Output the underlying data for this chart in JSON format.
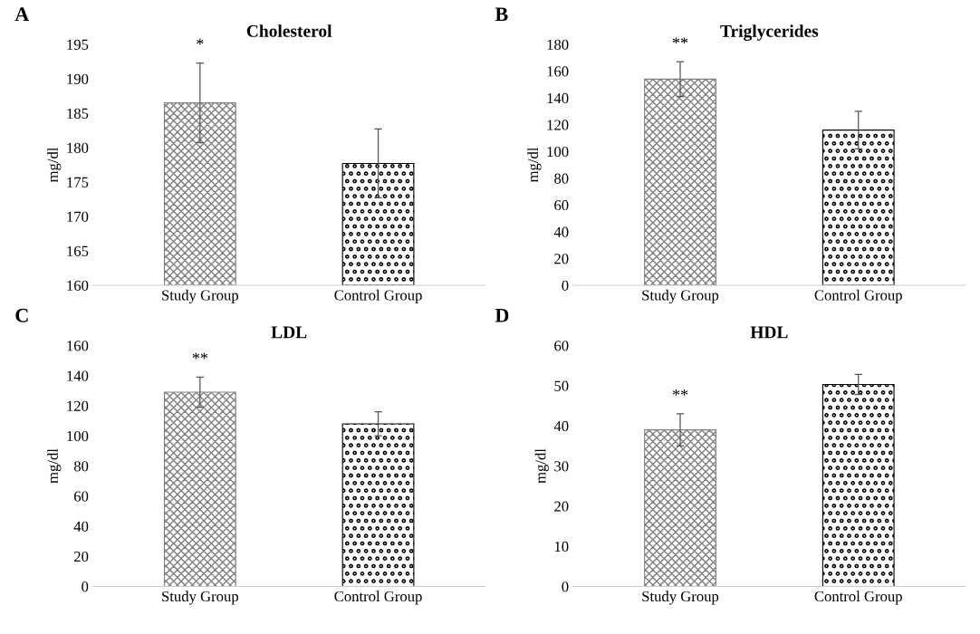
{
  "chart_data": [
    {
      "type": "bar",
      "title": "Cholesterol",
      "ylabel": "mg/dl",
      "categories": [
        "Study Group",
        "Control Group"
      ],
      "values": [
        186.5,
        177.7
      ],
      "errors": [
        5.8,
        5.0
      ],
      "colors": [
        "#7f7f7f",
        "#000000"
      ],
      "ylim": [
        160,
        195
      ],
      "yticks": [
        160,
        165,
        170,
        175,
        180,
        185,
        190,
        195
      ],
      "grid": false,
      "annotations": [
        "A",
        "*"
      ]
    },
    {
      "type": "bar",
      "title": "Triglycerides",
      "ylabel": "mg/dl",
      "categories": [
        "Study Group",
        "Control Group"
      ],
      "values": [
        154,
        116
      ],
      "errors": [
        13,
        14
      ],
      "colors": [
        "#7f7f7f",
        "#000000"
      ],
      "ylim": [
        0,
        180
      ],
      "yticks": [
        0,
        20,
        40,
        60,
        80,
        100,
        120,
        140,
        160,
        180
      ],
      "grid": false,
      "annotations": [
        "B",
        "**"
      ]
    },
    {
      "type": "bar",
      "title": "LDL",
      "ylabel": "mg/dl",
      "categories": [
        "Study Group",
        "Control Group"
      ],
      "values": [
        129,
        108
      ],
      "errors": [
        10,
        8
      ],
      "colors": [
        "#7f7f7f",
        "#000000"
      ],
      "ylim": [
        0,
        160
      ],
      "yticks": [
        0,
        20,
        40,
        60,
        80,
        100,
        120,
        140,
        160
      ],
      "grid": false,
      "annotations": [
        "C",
        "**"
      ]
    },
    {
      "type": "bar",
      "title": "HDL",
      "ylabel": "mg/dl",
      "categories": [
        "Study Group",
        "Control Group"
      ],
      "values": [
        39,
        50.3
      ],
      "errors": [
        4,
        2.5
      ],
      "colors": [
        "#7f7f7f",
        "#000000"
      ],
      "ylim": [
        0,
        60
      ],
      "yticks": [
        0,
        10,
        20,
        30,
        40,
        50,
        60
      ],
      "grid": false,
      "annotations": [
        "D",
        "**"
      ]
    }
  ]
}
